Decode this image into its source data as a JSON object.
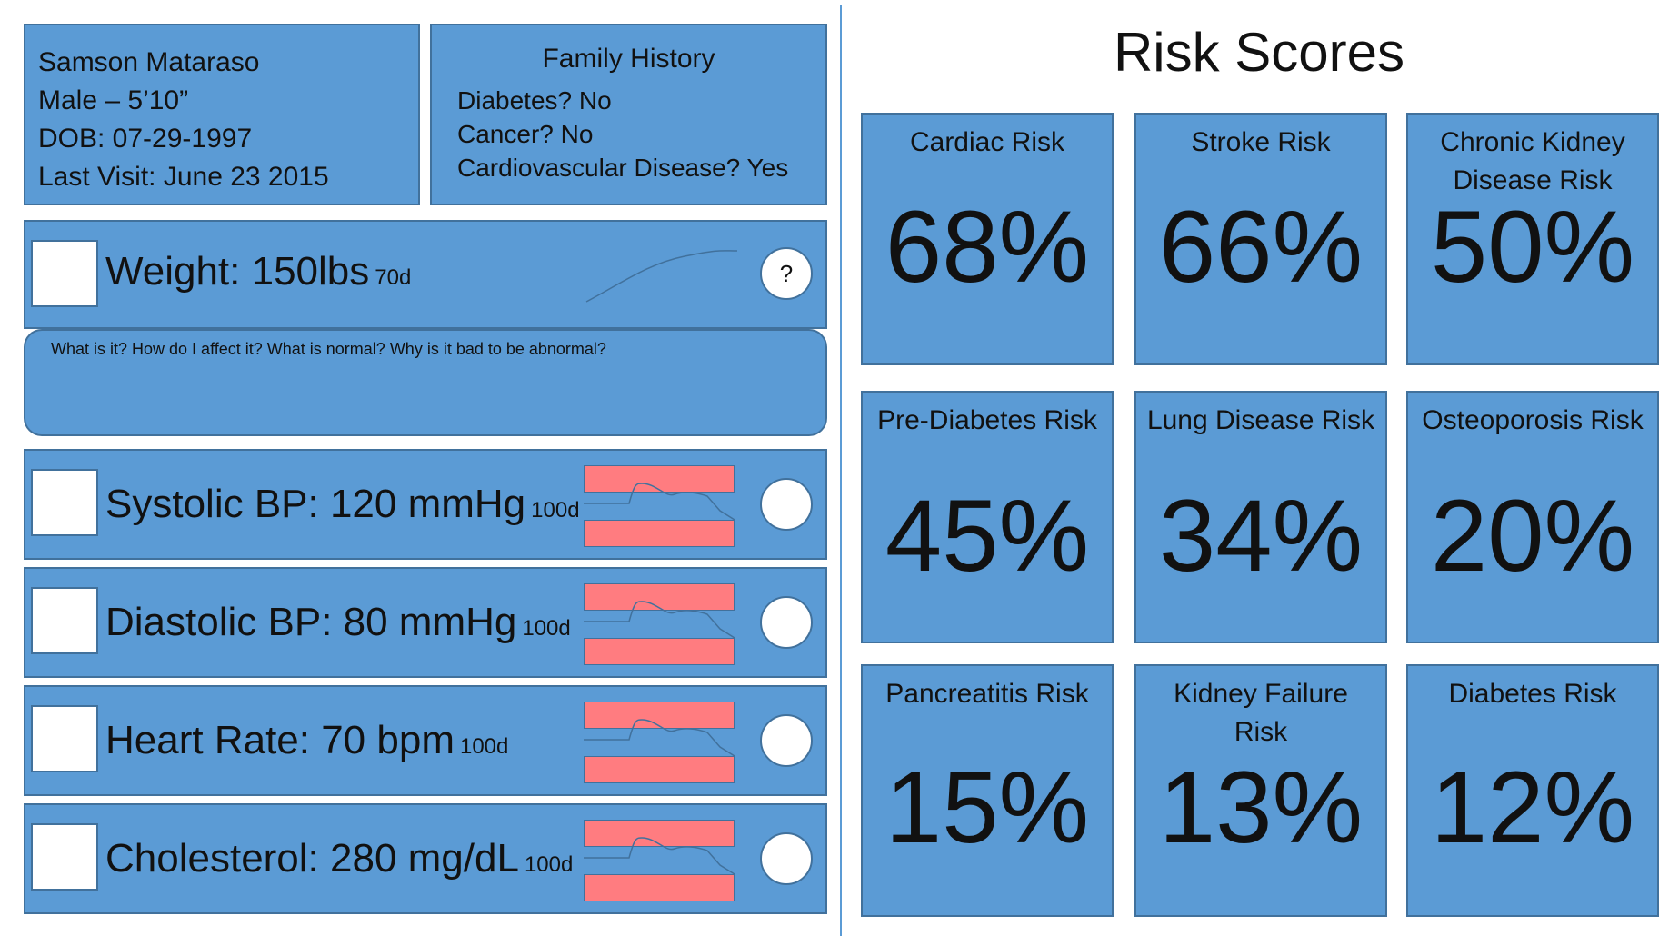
{
  "patient": {
    "name": "Samson Mataraso",
    "sex_height": "Male – 5’10”",
    "dob": "DOB: 07-29-1997",
    "last_visit": "Last Visit: June 23 2015"
  },
  "family_history": {
    "title": "Family History",
    "lines": [
      "Diabetes? No",
      "Cancer? No",
      "Cardiovascular Disease? Yes"
    ]
  },
  "metrics": [
    {
      "label": "Weight: 150lbs",
      "period": "70d",
      "button": "?"
    },
    {
      "label": "Systolic BP: 120 mmHg",
      "period": "100d"
    },
    {
      "label": "Diastolic BP: 80 mmHg",
      "period": "100d"
    },
    {
      "label": "Heart Rate: 70 bpm",
      "period": "100d"
    },
    {
      "label": "Cholesterol: 280 mg/dL",
      "period": "100d"
    }
  ],
  "info_panel": {
    "text": "What is it? How do I affect it? What is normal? Why is it bad to be abnormal?"
  },
  "risk_scores": {
    "title": "Risk Scores",
    "cards": [
      {
        "name": "Cardiac Risk",
        "value": "68%"
      },
      {
        "name": "Stroke Risk",
        "value": "66%"
      },
      {
        "name": "Chronic Kidney Disease Risk",
        "value": "50%"
      },
      {
        "name": "Pre-Diabetes Risk",
        "value": "45%"
      },
      {
        "name": "Lung Disease Risk",
        "value": "34%"
      },
      {
        "name": "Osteoporosis Risk",
        "value": "20%"
      },
      {
        "name": "Pancreatitis Risk",
        "value": "15%"
      },
      {
        "name": "Kidney Failure Risk",
        "value": "13%"
      },
      {
        "name": "Diabetes Risk",
        "value": "12%"
      }
    ]
  },
  "colors": {
    "panel": "#5b9bd5",
    "panel_border": "#41719c",
    "band": "#ff7c80",
    "sparkline": "#41719c"
  }
}
